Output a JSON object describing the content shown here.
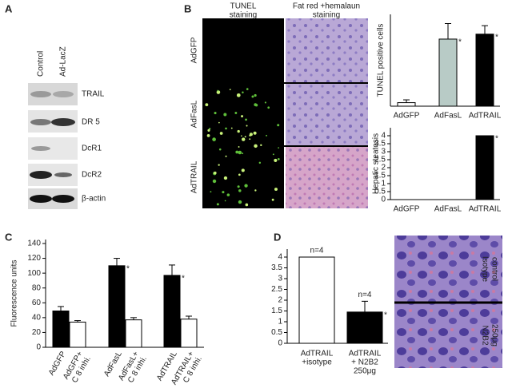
{
  "panel_labels": [
    "A",
    "B",
    "C",
    "D"
  ],
  "blot": {
    "columns": [
      "Control",
      "Ad-LacZ"
    ],
    "rows": [
      "TRAIL",
      "DR 5",
      "DcR1",
      "DcR2",
      "β-actin"
    ]
  },
  "micrographs": {
    "b_headers": [
      [
        "TUNEL",
        "staining"
      ],
      [
        "Fat red +hemalaun",
        "staining"
      ]
    ],
    "b_rows": [
      "AdGFP",
      "AdFasL",
      "AdTRAIL"
    ],
    "d_rows": [
      [
        "Isotype",
        "control"
      ],
      [
        "N2B2",
        "250μg"
      ]
    ]
  },
  "chart_data": [
    {
      "type": "bar",
      "y_label": "TUNEL positive cells",
      "categories": [
        "AdGFP",
        "AdFasL",
        "AdTRAIL"
      ],
      "values": [
        5,
        95,
        102
      ],
      "errors": [
        4,
        22,
        12
      ],
      "colors": [
        "#ffffff",
        "#b8cbc6",
        "#000000"
      ],
      "significance": [
        null,
        "*",
        "*"
      ],
      "ylim": [
        0,
        130
      ]
    },
    {
      "type": "bar",
      "y_label": "Hepatic steatosis",
      "categories": [
        "AdGFP",
        "AdFasL",
        "AdTRAIL"
      ],
      "values": [
        0,
        0,
        4
      ],
      "colors": [
        "#ffffff",
        "#b8cbc6",
        "#000000"
      ],
      "significance": [
        null,
        null,
        "*"
      ],
      "ylim": [
        0,
        4
      ],
      "yticks": [
        0,
        0.5,
        1,
        1.5,
        2,
        2.5,
        3,
        3.5,
        4
      ]
    },
    {
      "type": "bar",
      "y_label": "Fluorescence units",
      "categories": [
        [
          "AdGFP"
        ],
        [
          "AdGFP+",
          "C 8 inhi."
        ],
        [
          "AdFasL"
        ],
        [
          "AdFasL+",
          "C 8 inhi."
        ],
        [
          "AdTRAIL"
        ],
        [
          "AdTRAIL+",
          "C 8 inhi."
        ]
      ],
      "values": [
        49,
        34,
        110,
        37,
        97,
        38
      ],
      "errors": [
        6,
        2,
        10,
        3,
        14,
        4
      ],
      "colors": [
        "#000000",
        "#ffffff",
        "#000000",
        "#ffffff",
        "#000000",
        "#ffffff"
      ],
      "significance": [
        null,
        null,
        "*",
        null,
        "*",
        null
      ],
      "ylim": [
        0,
        140
      ],
      "yticks": [
        0,
        20,
        40,
        60,
        80,
        100,
        120,
        140
      ]
    },
    {
      "type": "bar",
      "categories": [
        [
          "AdTRAIL",
          "+isotype"
        ],
        [
          "AdTRAIL",
          "+ N2B2",
          "250μg"
        ]
      ],
      "values": [
        4,
        1.45
      ],
      "errors": [
        0,
        0.5
      ],
      "colors": [
        "#ffffff",
        "#000000"
      ],
      "annotations": [
        "n=4",
        "n=4"
      ],
      "significance": [
        null,
        "*"
      ],
      "ylim": [
        0,
        4
      ],
      "yticks": [
        0,
        0.5,
        1,
        1.5,
        2,
        2.5,
        3,
        3.5,
        4
      ]
    }
  ]
}
